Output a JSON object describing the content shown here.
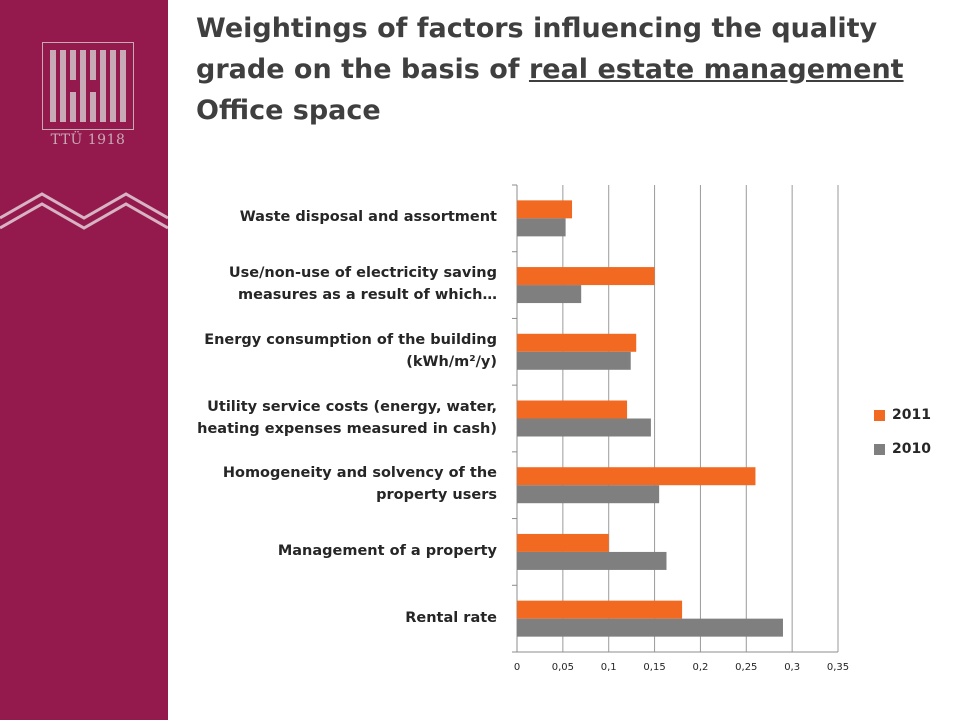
{
  "slide": {
    "title_part1": "Weightings of factors influencing the quality grade on the basis of ",
    "title_underlined": "real estate management",
    "title_part2": "Office space",
    "logo_text": "TTÜ 1918"
  },
  "colors": {
    "sidebar": "#941a4e",
    "series_2011": "#f26a21",
    "series_2010": "#7f7f7f"
  },
  "chart_data": {
    "type": "bar",
    "orientation": "horizontal",
    "title": "",
    "xlabel": "",
    "ylabel": "",
    "categories": [
      "Rental rate",
      "Management of a property",
      "Homogeneity and solvency of the property users",
      "Utility service costs (energy, water, heating expenses measured in cash)",
      "Energy consumption of the building (kWh/m²/y)",
      "Use/non-use of electricity saving measures as a result of which…",
      "Waste disposal and assortment"
    ],
    "series": [
      {
        "name": "2011",
        "color": "#f26a21",
        "values": [
          0.18,
          0.1,
          0.26,
          0.12,
          0.13,
          0.15,
          0.06
        ]
      },
      {
        "name": "2010",
        "color": "#7f7f7f",
        "values": [
          0.29,
          0.163,
          0.155,
          0.146,
          0.124,
          0.07,
          0.053
        ]
      }
    ],
    "xlim": [
      0,
      0.35
    ],
    "xticks": [
      0,
      0.05,
      0.1,
      0.15,
      0.2,
      0.25,
      0.3,
      0.35
    ],
    "tick_labels": [
      "0",
      "0,05",
      "0,1",
      "0,15",
      "0,2",
      "0,25",
      "0,3",
      "0,35"
    ],
    "grid": "vertical",
    "legend_position": "right",
    "legend_order": [
      "2011",
      "2010"
    ]
  }
}
